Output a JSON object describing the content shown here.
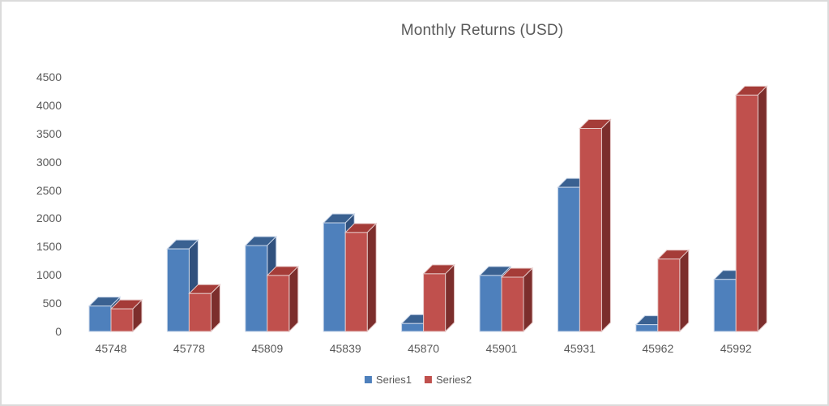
{
  "chart_data": {
    "type": "bar",
    "subtype": "3d-clustered-column",
    "title": "Monthly Returns (USD)",
    "categories": [
      "45748",
      "45778",
      "45809",
      "45839",
      "45870",
      "45901",
      "45931",
      "45962",
      "45992"
    ],
    "series": [
      {
        "name": "Series1",
        "values": [
          450,
          1460,
          1520,
          1920,
          140,
          990,
          2550,
          120,
          920
        ],
        "color": "#4E80BC",
        "color_top": "#3A6191",
        "color_side": "#30517E",
        "color_edge": "#C9D6E9"
      },
      {
        "name": "Series2",
        "values": [
          400,
          670,
          990,
          1750,
          1020,
          960,
          3590,
          1280,
          4180
        ],
        "color": "#C0504D",
        "color_top": "#A53C38",
        "color_side": "#7C2E2C",
        "color_edge": "#E5C7C6"
      }
    ],
    "xlabel": "",
    "ylabel": "",
    "ylim": [
      0,
      4500
    ],
    "ytick_step": 500,
    "yticks": [
      "0",
      "500",
      "1000",
      "1500",
      "2000",
      "2500",
      "3000",
      "3500",
      "4000",
      "4500"
    ],
    "grid": false,
    "legend_position": "bottom-center",
    "text_color": "#595959",
    "background": "#FFFFFF",
    "border_color": "#DBDBDB"
  }
}
